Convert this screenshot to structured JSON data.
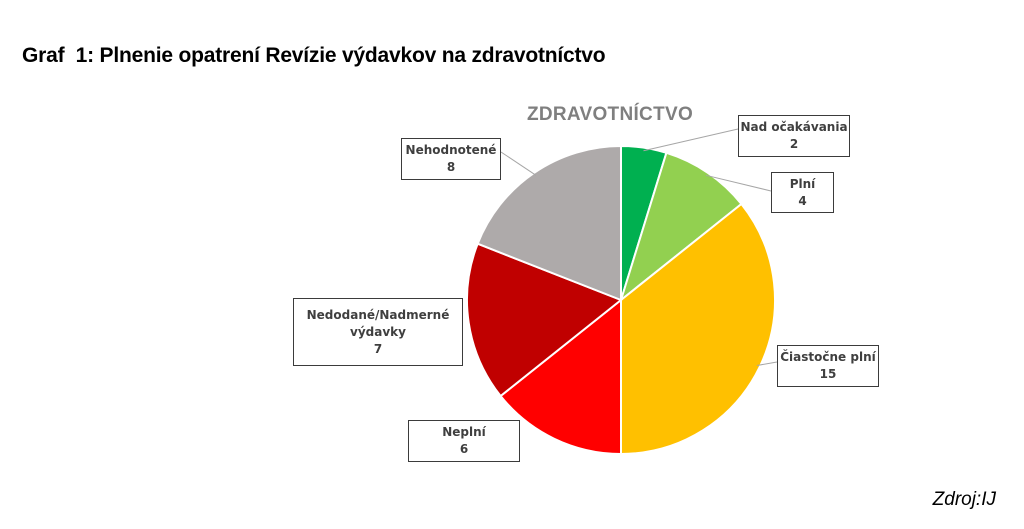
{
  "title": "Graf  1: Plnenie opatrení Revízie výdavkov na zdravotníctvo",
  "source": "Zdroj:IJ",
  "chart_data": {
    "type": "pie",
    "title": "ZDRAVOTNÍCTVO",
    "slices": [
      {
        "label": "Nad očakávania",
        "value": 2,
        "color": "#00b050"
      },
      {
        "label": "Plní",
        "value": 4,
        "color": "#92d050"
      },
      {
        "label": "Čiastočne plní",
        "value": 15,
        "color": "#ffc000"
      },
      {
        "label": "Neplní",
        "value": 6,
        "color": "#ff0000"
      },
      {
        "label": "Nedodané/Nadmerné výdavky",
        "value": 7,
        "color": "#c00000"
      },
      {
        "label": "Nehodnotené",
        "value": 8,
        "color": "#aeaaaa"
      }
    ],
    "start_angle": "12 o'clock",
    "direction": "clockwise",
    "legend": "none",
    "data_labels": "callouts"
  }
}
